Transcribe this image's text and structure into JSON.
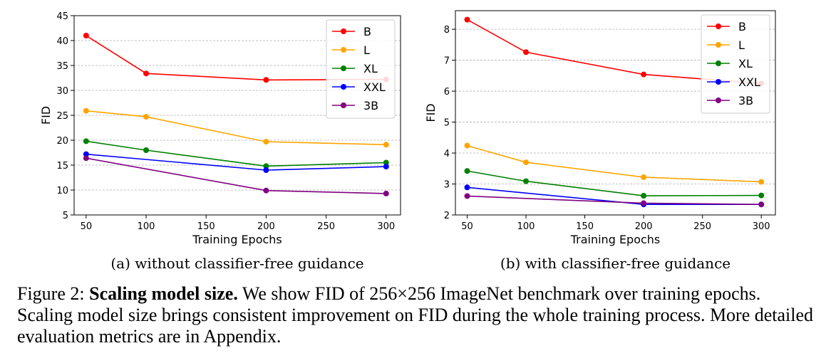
{
  "chart_data": [
    {
      "type": "line",
      "subtitle": "(a) without classifier-free guidance",
      "xlabel": "Training Epochs",
      "ylabel": "FID",
      "x": [
        50,
        100,
        200,
        300
      ],
      "xticks": [
        "50",
        "100",
        "150",
        "200",
        "250",
        "300"
      ],
      "xlim": [
        40,
        312
      ],
      "yticks": [
        "5",
        "10",
        "15",
        "20",
        "25",
        "30",
        "35",
        "40",
        "45"
      ],
      "ylim": [
        5,
        45
      ],
      "grid": "horizontal dashed",
      "legend": "top-right",
      "series": [
        {
          "name": "B",
          "color": "#ff0000",
          "values": [
            41.0,
            33.4,
            32.1,
            32.2
          ]
        },
        {
          "name": "L",
          "color": "#ffa500",
          "values": [
            25.9,
            24.7,
            19.7,
            19.1
          ]
        },
        {
          "name": "XL",
          "color": "#008000",
          "values": [
            19.8,
            18.0,
            14.8,
            15.5
          ]
        },
        {
          "name": "XXL",
          "color": "#0000ff",
          "values": [
            17.2,
            null,
            14.0,
            14.7
          ]
        },
        {
          "name": "3B",
          "color": "#800080",
          "values": [
            16.4,
            null,
            9.9,
            9.3
          ]
        }
      ]
    },
    {
      "type": "line",
      "subtitle": "(b) with classifier-free guidance",
      "xlabel": "Training Epochs",
      "ylabel": "FID",
      "x": [
        50,
        100,
        200,
        300
      ],
      "xticks": [
        "50",
        "100",
        "150",
        "200",
        "250",
        "300"
      ],
      "xlim": [
        40,
        312
      ],
      "yticks": [
        "2",
        "3",
        "4",
        "5",
        "6",
        "7",
        "8"
      ],
      "ylim": [
        2,
        8.6
      ],
      "grid": "horizontal dashed",
      "legend": "top-right",
      "series": [
        {
          "name": "B",
          "color": "#ff0000",
          "values": [
            8.31,
            7.26,
            6.54,
            6.25
          ]
        },
        {
          "name": "L",
          "color": "#ffa500",
          "values": [
            4.24,
            3.7,
            3.22,
            3.07
          ]
        },
        {
          "name": "XL",
          "color": "#008000",
          "values": [
            3.42,
            3.09,
            2.62,
            2.63
          ]
        },
        {
          "name": "XXL",
          "color": "#0000ff",
          "values": [
            2.89,
            null,
            2.34,
            2.34
          ]
        },
        {
          "name": "3B",
          "color": "#800080",
          "values": [
            2.61,
            null,
            2.38,
            2.34
          ]
        }
      ]
    }
  ],
  "caption": {
    "label": "Figure 2: ",
    "bold": "Scaling model size.",
    "text": " We show FID of 256×256 ImageNet benchmark over training epochs. Scaling model size brings consistent improvement on FID during the whole training process. More detailed evaluation metrics are in Appendix."
  }
}
